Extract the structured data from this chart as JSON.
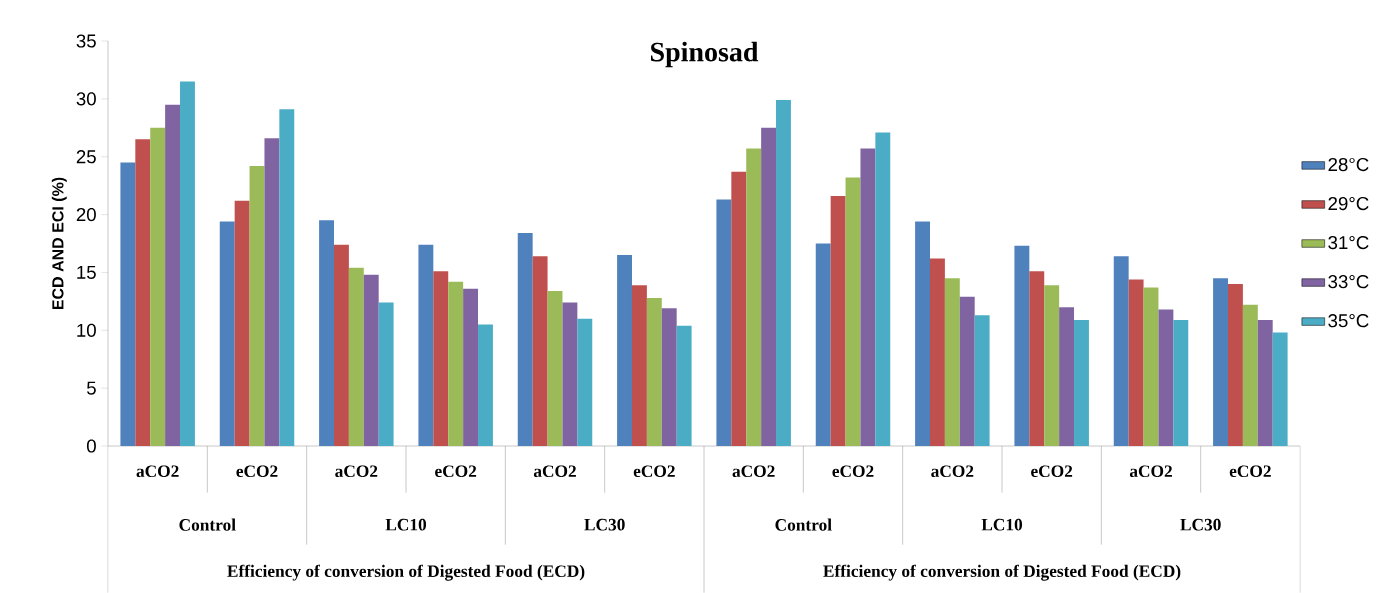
{
  "chart_data": {
    "type": "bar",
    "title": "Spinosad",
    "ylabel": "ECD AND ECI (%)",
    "categories": [
      "aCO2",
      "eCO2",
      "aCO2",
      "eCO2",
      "aCO2",
      "eCO2",
      "aCO2",
      "eCO2",
      "aCO2",
      "eCO2",
      "aCO2",
      "eCO2"
    ],
    "series": [
      {
        "name": "28°C",
        "color": "#4f81bd",
        "values": [
          24.5,
          19.4,
          19.5,
          17.4,
          18.4,
          16.5,
          21.3,
          17.5,
          19.4,
          17.3,
          16.4,
          14.5
        ]
      },
      {
        "name": "29°C",
        "color": "#c0504d",
        "values": [
          26.5,
          21.2,
          17.4,
          15.1,
          16.4,
          13.9,
          23.7,
          21.6,
          16.2,
          15.1,
          14.4,
          14.0
        ]
      },
      {
        "name": "31°C",
        "color": "#9bbb59",
        "values": [
          27.5,
          24.2,
          15.4,
          14.2,
          13.4,
          12.8,
          25.7,
          23.2,
          14.5,
          13.9,
          13.7,
          12.2
        ]
      },
      {
        "name": "33°C",
        "color": "#8064a2",
        "values": [
          29.5,
          26.6,
          14.8,
          13.6,
          12.4,
          11.9,
          27.5,
          25.7,
          12.9,
          12.0,
          11.8,
          10.9
        ]
      },
      {
        "name": "35°C",
        "color": "#4bacc6",
        "values": [
          31.5,
          29.1,
          12.4,
          10.5,
          11.0,
          10.4,
          29.9,
          27.1,
          11.3,
          10.9,
          10.9,
          9.8
        ]
      }
    ],
    "ylim": [
      0,
      35
    ],
    "yticks": [
      0,
      5,
      10,
      15,
      20,
      25,
      30,
      35
    ],
    "grid": false,
    "legend": "right",
    "annotations": [
      "Control",
      "LC10",
      "LC30",
      "Control",
      "LC10",
      "LC30",
      "Efficiency of conversion of Digested Food (ECD)",
      "Efficiency of conversion of Digested Food (ECD)"
    ]
  }
}
